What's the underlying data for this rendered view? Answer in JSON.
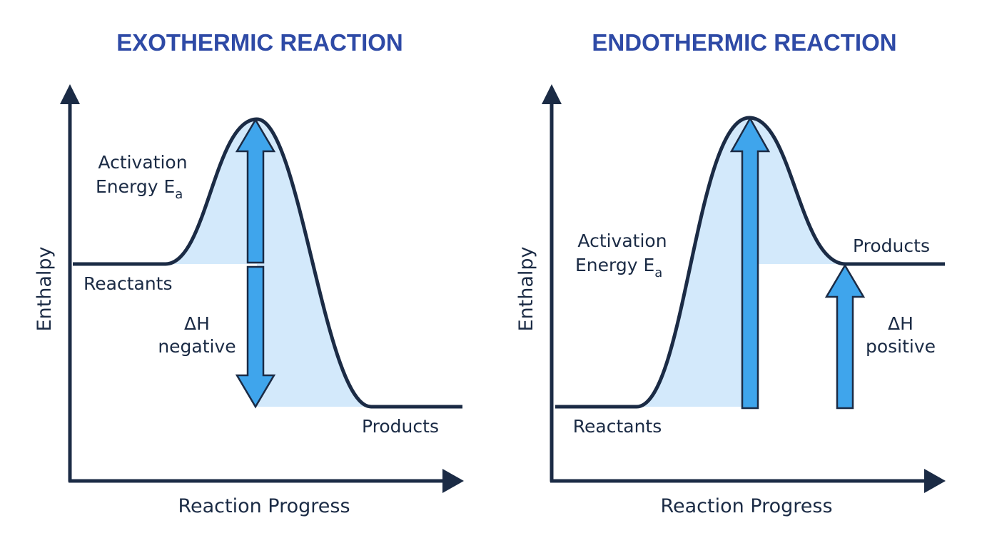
{
  "colors": {
    "title": "#2e4aa6",
    "ink": "#1b2b45",
    "fill": "#d3e9fb",
    "arrow": "#3fa5ec"
  },
  "diagrams": [
    {
      "title": "EXOTHERMIC REACTION",
      "y_axis_label": "Enthalpy",
      "x_axis_label": "Reaction Progress",
      "reactants_label": "Reactants",
      "products_label": "Products",
      "activation_label_line1": "Activation",
      "activation_label_line2": "Energy E",
      "activation_subscript": "a",
      "delta_label_line1": "ΔH",
      "delta_label_line2": "negative"
    },
    {
      "title": "ENDOTHERMIC REACTION",
      "y_axis_label": "Enthalpy",
      "x_axis_label": "Reaction Progress",
      "reactants_label": "Reactants",
      "products_label": "Products",
      "activation_label_line1": "Activation",
      "activation_label_line2": "Energy E",
      "activation_subscript": "a",
      "delta_label_line1": "ΔH",
      "delta_label_line2": "positive"
    }
  ]
}
